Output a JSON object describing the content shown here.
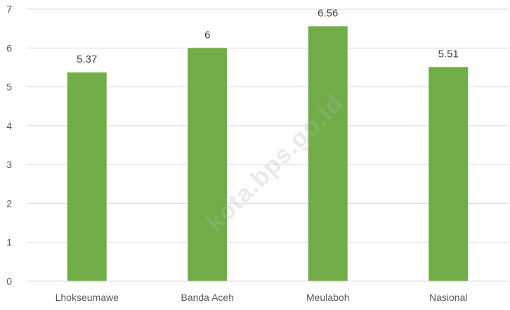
{
  "watermark": "kota.bps.go.id",
  "colors": {
    "bar": "#70ad47",
    "gridline": "#d9d9d9",
    "axis_line": "#d9d9d9",
    "tick_text": "#595959",
    "data_label_text": "#404040",
    "background": "#ffffff"
  },
  "chart_data": {
    "type": "bar",
    "categories": [
      "Lhokseumawe",
      "Banda Aceh",
      "Meulaboh",
      "Nasional"
    ],
    "values": [
      5.37,
      6,
      6.56,
      5.51
    ],
    "value_labels": [
      "5.37",
      "6",
      "6.56",
      "5.51"
    ],
    "title": "",
    "xlabel": "",
    "ylabel": "",
    "ylim": [
      0,
      7
    ],
    "yticks": [
      0,
      1,
      2,
      3,
      4,
      5,
      6,
      7
    ],
    "grid": true,
    "legend": "none"
  }
}
